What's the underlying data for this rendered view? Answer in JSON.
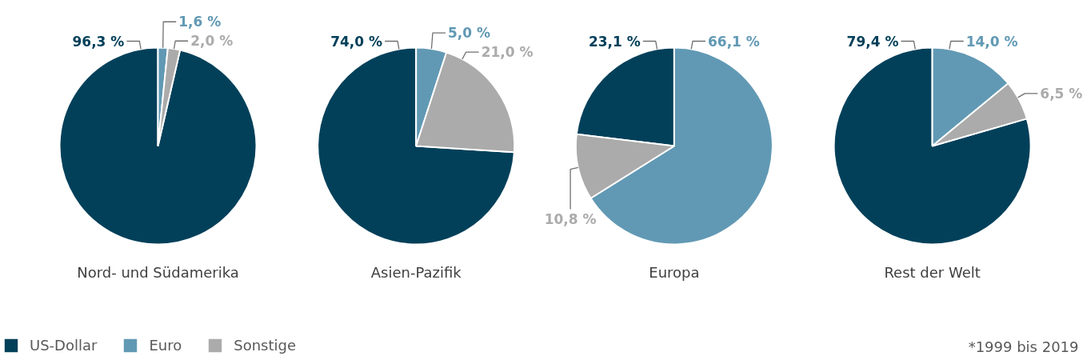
{
  "chart_data": [
    {
      "type": "pie",
      "title": "Nord- und Südamerika",
      "categories": [
        "US-Dollar",
        "Euro",
        "Sonstige"
      ],
      "values": [
        96.3,
        1.6,
        2.0
      ],
      "colors": [
        "#02405a",
        "#6199b4",
        "#acabab"
      ],
      "value_labels": [
        "96,3 %",
        "1,6 %",
        "2,0 %"
      ],
      "legend": "bottom left"
    },
    {
      "type": "pie",
      "title": "Asien-Pazifik",
      "categories": [
        null,
        null,
        null
      ],
      "values": [
        74.0,
        5.0,
        21.0
      ],
      "colors": [
        "#02405a",
        "#6199b4",
        "#acabab"
      ],
      "value_labels": [
        "74,0 %",
        "5,0 %",
        "21,0 %"
      ]
    },
    {
      "type": "pie",
      "title": "Europa",
      "categories": [
        null,
        null,
        null
      ],
      "values": [
        23.1,
        66.1,
        10.8
      ],
      "colors": [
        "#02405a",
        "#6199b4",
        "#acabab"
      ],
      "value_labels": [
        "23,1 %",
        "66,1 %",
        "10,8 %"
      ]
    },
    {
      "type": "pie",
      "title": "Rest der Welt",
      "categories": [
        null,
        null,
        null
      ],
      "values": [
        79.4,
        14.0,
        6.5
      ],
      "colors": [
        "#02405a",
        "#6199b4",
        "#acabab"
      ],
      "value_labels": [
        "79,4 %",
        "14,0 %",
        "6,5 %"
      ],
      "annotations": [
        "*1999 bis 2019"
      ]
    }
  ]
}
